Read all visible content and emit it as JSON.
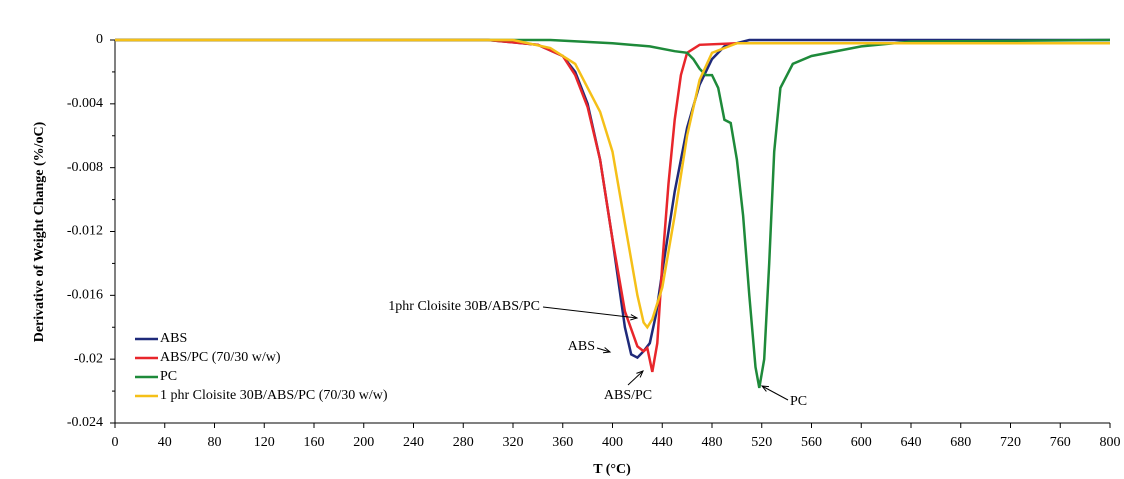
{
  "chart_data": {
    "type": "line",
    "xlabel": "T (°C)",
    "ylabel": "Derivative of Weight Change (%/oC)",
    "xlim": [
      0,
      800
    ],
    "xticks": [
      0,
      40,
      80,
      120,
      160,
      200,
      240,
      280,
      320,
      360,
      400,
      440,
      480,
      520,
      560,
      600,
      640,
      680,
      720,
      760,
      800
    ],
    "ylim": [
      -0.024,
      0
    ],
    "yticks": [
      0,
      -0.004,
      -0.008,
      -0.012,
      -0.016,
      -0.02,
      -0.024
    ],
    "legend": "lower left",
    "series": [
      {
        "name": "ABS",
        "color": "#1f2a7a",
        "x": [
          0,
          300,
          340,
          360,
          370,
          380,
          390,
          400,
          410,
          415,
          420,
          425,
          430,
          435,
          440,
          450,
          460,
          470,
          480,
          490,
          510,
          800
        ],
        "values": [
          0,
          0,
          -0.0003,
          -0.001,
          -0.002,
          -0.004,
          -0.0075,
          -0.0125,
          -0.018,
          -0.0197,
          -0.0199,
          -0.0195,
          -0.019,
          -0.0172,
          -0.0145,
          -0.0095,
          -0.0055,
          -0.0028,
          -0.0012,
          -0.0004,
          0,
          0
        ]
      },
      {
        "name": "ABS/PC (70/30 w/w)",
        "color": "#e8262b",
        "x": [
          0,
          300,
          340,
          360,
          370,
          380,
          390,
          400,
          410,
          420,
          425,
          428,
          432,
          436,
          440,
          445,
          450,
          455,
          460,
          470,
          500,
          800
        ],
        "values": [
          0,
          0,
          -0.0003,
          -0.001,
          -0.0022,
          -0.0042,
          -0.0075,
          -0.0125,
          -0.017,
          -0.0192,
          -0.0195,
          -0.0193,
          -0.0208,
          -0.019,
          -0.014,
          -0.009,
          -0.005,
          -0.0022,
          -0.0008,
          -0.0003,
          -0.0002,
          -0.0002
        ]
      },
      {
        "name": "PC",
        "color": "#1e8a3a",
        "x": [
          0,
          350,
          400,
          430,
          450,
          460,
          465,
          470,
          475,
          480,
          485,
          490,
          495,
          500,
          505,
          510,
          515,
          518,
          522,
          526,
          530,
          535,
          545,
          560,
          600,
          640,
          800
        ],
        "values": [
          0,
          0,
          -0.0002,
          -0.0004,
          -0.0007,
          -0.0008,
          -0.0012,
          -0.0018,
          -0.0022,
          -0.0022,
          -0.003,
          -0.005,
          -0.0052,
          -0.0075,
          -0.011,
          -0.016,
          -0.0205,
          -0.0218,
          -0.02,
          -0.014,
          -0.007,
          -0.003,
          -0.0015,
          -0.001,
          -0.0004,
          -0.0001,
          0
        ]
      },
      {
        "name": "1 phr Cloisite 30B/ABS/PC (70/30 w/w)",
        "color": "#f5c018",
        "x": [
          0,
          320,
          350,
          370,
          390,
          400,
          410,
          420,
          425,
          428,
          432,
          440,
          450,
          460,
          470,
          480,
          500,
          800
        ],
        "values": [
          0,
          0,
          -0.0005,
          -0.0015,
          -0.0045,
          -0.007,
          -0.0115,
          -0.016,
          -0.0177,
          -0.018,
          -0.0175,
          -0.0155,
          -0.011,
          -0.006,
          -0.0025,
          -0.0008,
          -0.0002,
          -0.0002
        ]
      }
    ],
    "annotations": [
      "1phr Cloisite 30B/ABS/PC",
      "ABS",
      "ABS/PC",
      "PC"
    ]
  }
}
